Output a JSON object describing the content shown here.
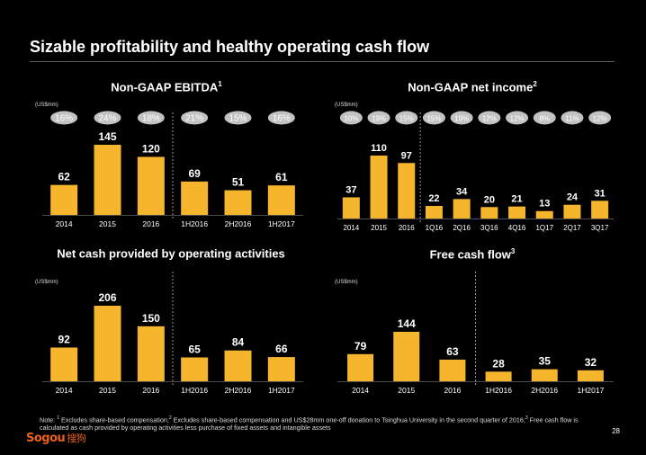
{
  "page": {
    "title": "Sizable profitability and healthy operating cash flow",
    "note_prefix": "Note: ",
    "note_1_num": "1",
    "note_1": " Excludes share-based compensation;",
    "note_2_num": "2",
    "note_2": " Excludes share-based compensation and US$28mm one-off donation to Tsinghua University in the second quarter of 2016;",
    "note_3_num": "3",
    "note_3": " Free cash flow is calculated as cash provided by operating activities less purchase of fixed assets and intangible assets",
    "page_number": "28",
    "logo_text": "Sogou",
    "logo_cn": "搜狗"
  },
  "colors": {
    "bar": "#F5B52D",
    "margin_pill": "#C2C2C2",
    "background": "#000000"
  },
  "chart_data": [
    {
      "type": "bar",
      "title": "Non-GAAP EBITDA",
      "title_sup": "1",
      "unit": "(US$mm)",
      "categories": [
        "2014",
        "2015",
        "2016",
        "1H2016",
        "2H2016",
        "1H2017"
      ],
      "values": [
        62,
        145,
        120,
        69,
        51,
        61
      ],
      "margins": [
        "16%",
        "24%",
        "18%",
        "21%",
        "15%",
        "16%"
      ],
      "divider_after_index": 2
    },
    {
      "type": "bar",
      "title": "Non-GAAP net income",
      "title_sup": "2",
      "unit": "(US$mm)",
      "categories": [
        "2014",
        "2015",
        "2016",
        "1Q16",
        "2Q16",
        "3Q16",
        "4Q16",
        "1Q17",
        "2Q17",
        "3Q17"
      ],
      "values": [
        37,
        110,
        97,
        22,
        34,
        20,
        21,
        13,
        24,
        31
      ],
      "margins": [
        "10%",
        "19%",
        "15%",
        "15%",
        "19%",
        "12%",
        "12%",
        "8%",
        "11%",
        "12%"
      ],
      "divider_after_index": 2
    },
    {
      "type": "bar",
      "title": "Net cash provided by operating activities",
      "title_sup": "",
      "unit": "(US$mm)",
      "categories": [
        "2014",
        "2015",
        "2016",
        "1H2016",
        "2H2016",
        "1H2017"
      ],
      "values": [
        92,
        206,
        150,
        65,
        84,
        66
      ],
      "divider_after_index": 2
    },
    {
      "type": "bar",
      "title": "Free cash flow",
      "title_sup": "3",
      "unit": "(US$mm)",
      "categories": [
        "2014",
        "2015",
        "2016",
        "1H2016",
        "2H2016",
        "1H2017"
      ],
      "values": [
        79,
        144,
        63,
        28,
        35,
        32
      ],
      "divider_after_index": 2
    }
  ]
}
